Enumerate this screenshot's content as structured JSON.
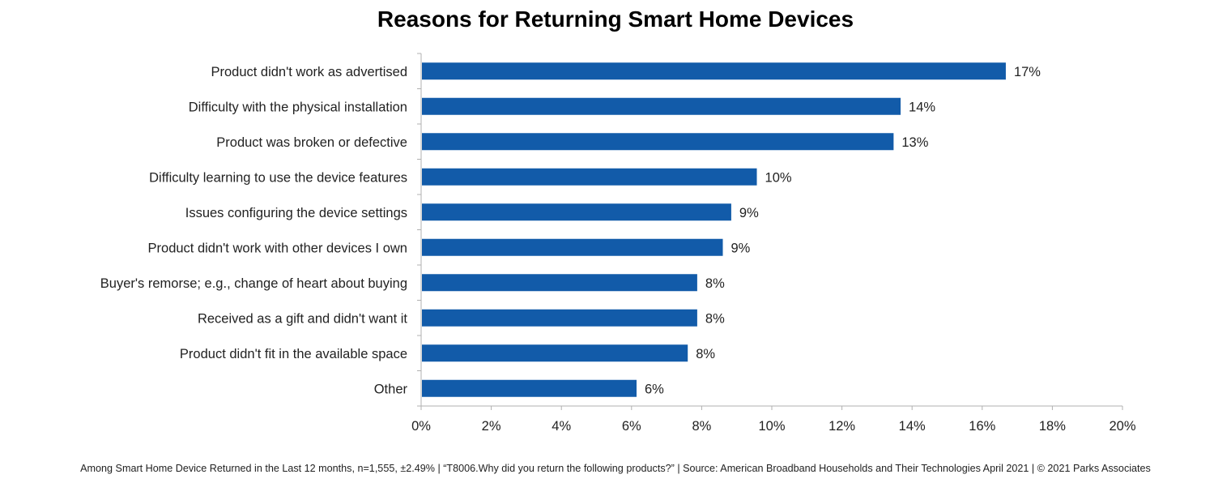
{
  "chart_data": {
    "type": "bar",
    "orientation": "horizontal",
    "title": "Reasons for Returning Smart Home Devices",
    "categories": [
      "Product didn't work as advertised",
      "Difficulty with the physical installation",
      "Product was broken or defective",
      "Difficulty learning to use the device features",
      "Issues configuring the device settings",
      "Product didn't work with other devices I own",
      "Buyer's remorse; e.g., change of heart about buying",
      "Received as a gift and didn't want it",
      "Product didn't fit in the available space",
      "Other"
    ],
    "values": [
      16.65,
      13.65,
      13.45,
      9.55,
      8.82,
      8.58,
      7.85,
      7.85,
      7.58,
      6.12
    ],
    "value_labels": [
      "17%",
      "14%",
      "13%",
      "10%",
      "9%",
      "9%",
      "8%",
      "8%",
      "8%",
      "6%"
    ],
    "xlim": [
      0,
      20
    ],
    "x_ticks": [
      0,
      2,
      4,
      6,
      8,
      10,
      12,
      14,
      16,
      18,
      20
    ],
    "x_tick_labels": [
      "0%",
      "2%",
      "4%",
      "6%",
      "8%",
      "10%",
      "12%",
      "14%",
      "16%",
      "18%",
      "20%"
    ],
    "xlabel": "",
    "ylabel": "",
    "grid": false,
    "bar_color": "#125ba9",
    "axis_color": "#b0b0b0"
  },
  "footnote": "Among Smart Home Device Returned in the Last 12 months, n=1,555, ±2.49% | “T8006.Why did you return the following products?” | Source: American Broadband Households and Their Technologies April 2021 | © 2021 Parks Associates"
}
